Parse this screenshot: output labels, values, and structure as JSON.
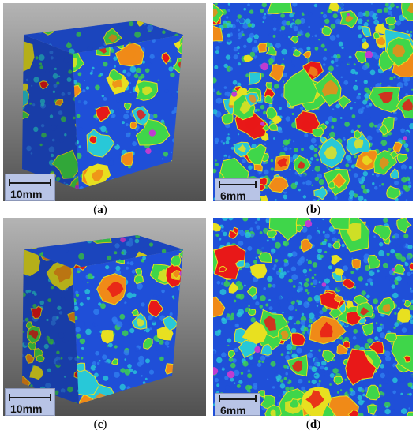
{
  "panels": [
    {
      "id": "a",
      "type": "cube",
      "scale_label": "10mm",
      "caption_letter": "a"
    },
    {
      "id": "b",
      "type": "slice",
      "scale_label": "6mm",
      "caption_letter": "b"
    },
    {
      "id": "c",
      "type": "cube",
      "scale_label": "10mm",
      "caption_letter": "c"
    },
    {
      "id": "d",
      "type": "slice",
      "scale_label": "6mm",
      "caption_letter": "d"
    }
  ],
  "colors": {
    "matrix": "#1f4fd8",
    "matrix_light": "#2f7ef0",
    "cyan": "#28c8d8",
    "green": "#3fd64a",
    "yellow": "#e8e020",
    "orange": "#f08a18",
    "red": "#e81818",
    "magenta": "#c03cd0",
    "scale_bg": "#b8c4e6"
  }
}
